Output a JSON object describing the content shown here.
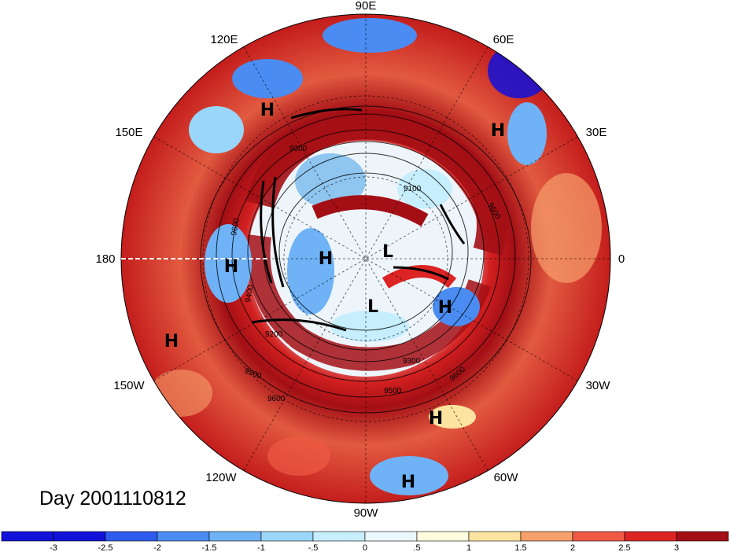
{
  "day_label": "Day 2001110812",
  "longitude_labels": {
    "lon_90e": "90E",
    "lon_60e": "60E",
    "lon_30e": "30E",
    "lon_0": "0",
    "lon_30w": "30W",
    "lon_60w": "60W",
    "lon_90w": "90W",
    "lon_120w": "120W",
    "lon_150w": "150W",
    "lon_180": "180",
    "lon_150e": "150E",
    "lon_120e": "120E"
  },
  "pressure_centers": [
    {
      "label": "H",
      "id": "h-east-asia"
    },
    {
      "label": "H",
      "id": "h-urals"
    },
    {
      "label": "H",
      "id": "h-dateline"
    },
    {
      "label": "H",
      "id": "h-arctic"
    },
    {
      "label": "L",
      "id": "l-arctic-north"
    },
    {
      "label": "L",
      "id": "l-arctic-south"
    },
    {
      "label": "H",
      "id": "h-atlantic"
    },
    {
      "label": "H",
      "id": "h-pacific"
    },
    {
      "label": "H",
      "id": "h-us-east"
    },
    {
      "label": "H",
      "id": "h-caribbean"
    }
  ],
  "contour_labels": [
    "9300",
    "9100",
    "9600",
    "9600",
    "9400",
    "9200",
    "9500",
    "9600",
    "9300",
    "9500",
    "9600"
  ],
  "colorbar": {
    "ticks": [
      "-3",
      "-2.5",
      "-2",
      "-1.5",
      "-1",
      "-.5",
      "0",
      ".5",
      "1",
      "1.5",
      "2",
      "2.5",
      "3"
    ],
    "colors": [
      "#1212d9",
      "#2e5bee",
      "#4a8cf2",
      "#6fb2f6",
      "#9ad6fa",
      "#c6eefd",
      "#eaf8fe",
      "#fffbde",
      "#fde3a0",
      "#f6a06c",
      "#ee5a45",
      "#dc2424",
      "#a30f15"
    ]
  }
}
